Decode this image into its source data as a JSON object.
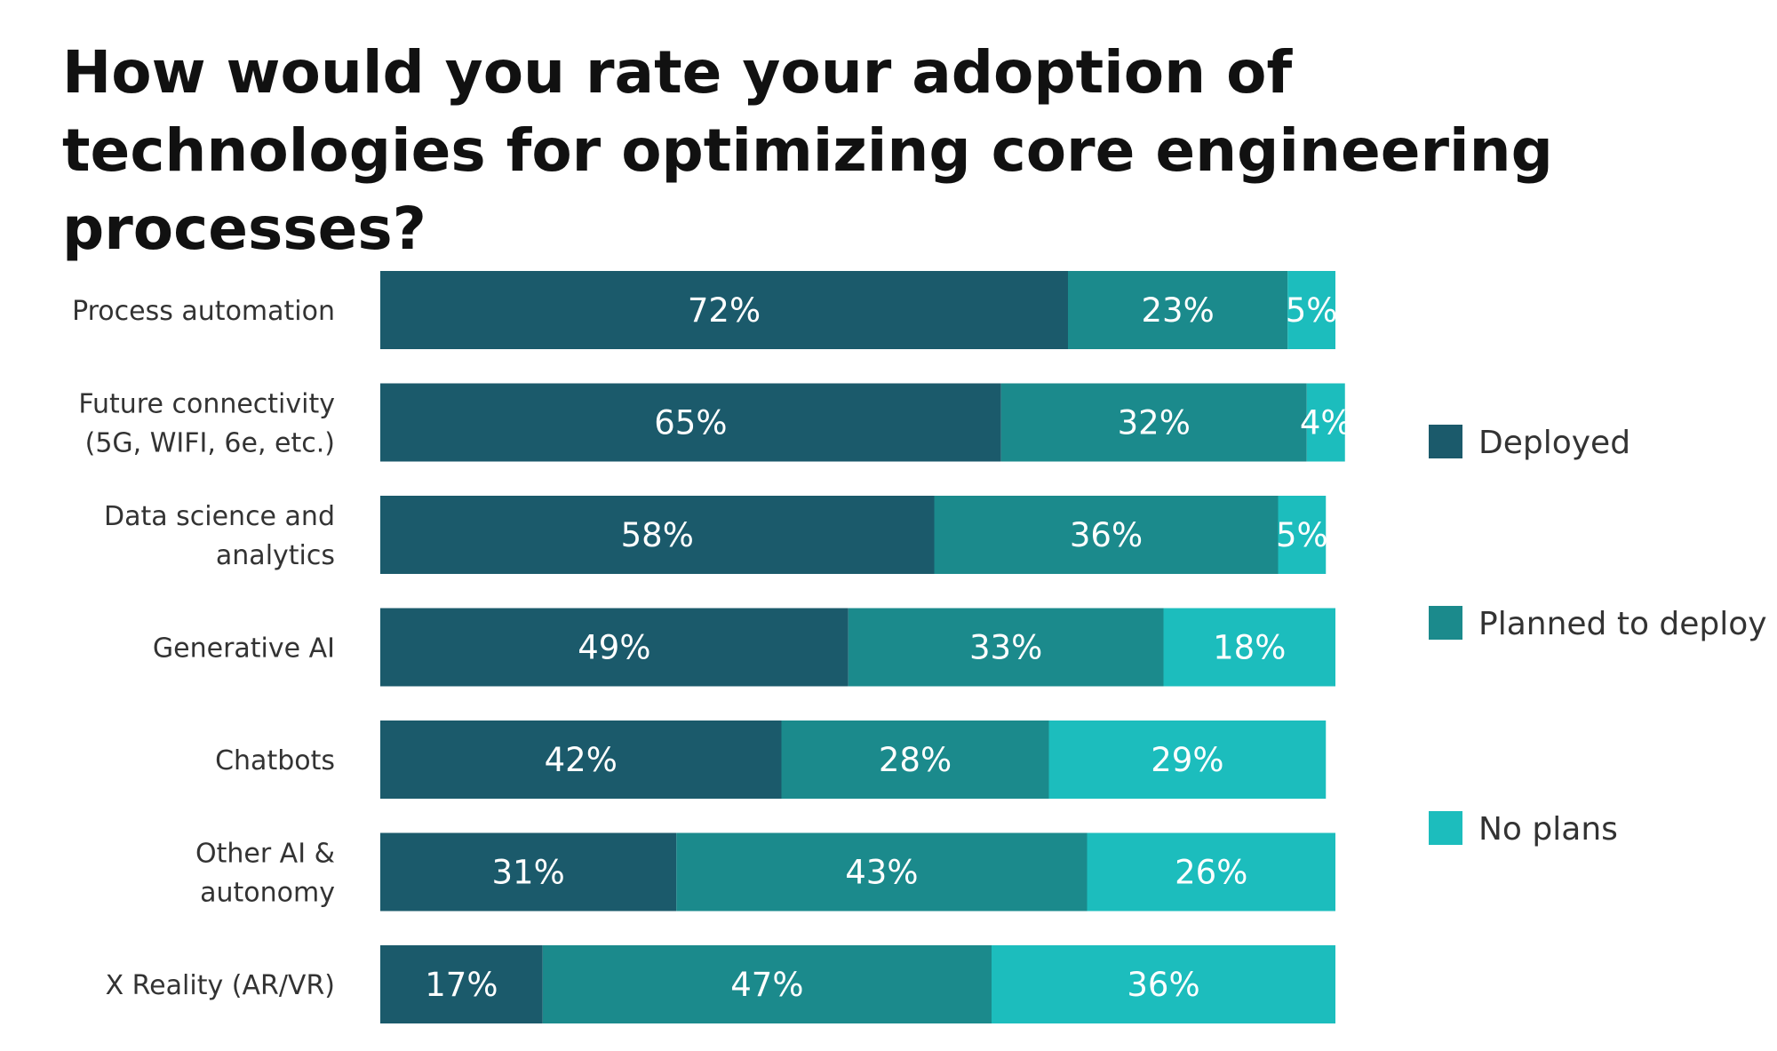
{
  "title": "How would you rate your adoption of technologies for optimizing core engineering processes?",
  "colors": {
    "Deployed": "#1b5a6b",
    "Planned to deploy": "#1b8a8c",
    "No plans": "#1cbdbd"
  },
  "chart_data": {
    "type": "bar",
    "orientation": "horizontal",
    "stacked": true,
    "title": "How would you rate your adoption of technologies for optimizing core engineering processes?",
    "categories": [
      [
        "Process automation"
      ],
      [
        "Future connectivity",
        "(5G, WIFI, 6e, etc.)"
      ],
      [
        "Data science and",
        "analytics"
      ],
      [
        "Generative AI"
      ],
      [
        "Chatbots"
      ],
      [
        "Other AI &",
        "autonomy"
      ],
      [
        "X Reality (AR/VR)"
      ]
    ],
    "series": [
      {
        "name": "Deployed",
        "values": [
          72,
          65,
          58,
          49,
          42,
          31,
          17
        ]
      },
      {
        "name": "Planned to deploy",
        "values": [
          23,
          32,
          36,
          33,
          28,
          43,
          47
        ]
      },
      {
        "name": "No plans",
        "values": [
          5,
          4,
          5,
          18,
          29,
          26,
          36
        ]
      }
    ],
    "value_suffix": "%",
    "legend": [
      "Deployed",
      "Planned to deploy",
      "No plans"
    ],
    "legend_position": "right",
    "grid": false
  }
}
